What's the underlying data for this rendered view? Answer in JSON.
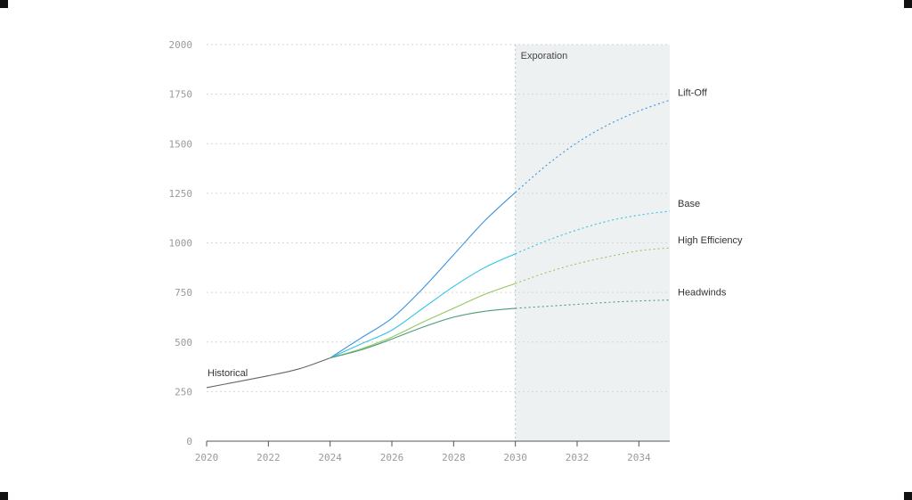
{
  "chart_data": {
    "type": "line",
    "title": "",
    "xlabel": "",
    "ylabel": "",
    "xlim": [
      2020,
      2035
    ],
    "ylim": [
      0,
      2000
    ],
    "x_ticks": [
      2020,
      2022,
      2024,
      2026,
      2028,
      2030,
      2032,
      2034
    ],
    "y_ticks": [
      0,
      250,
      500,
      750,
      1000,
      1250,
      1500,
      1750,
      2000
    ],
    "grid": "horizontal dotted",
    "legend": "none (inline end labels)",
    "region": {
      "label": "Exporation",
      "x_start": 2030,
      "x_end": 2035,
      "color": "#eef1f2"
    },
    "historical": {
      "name": "Historical",
      "color": "#666666",
      "points": [
        [
          2020,
          270
        ],
        [
          2021,
          300
        ],
        [
          2022,
          330
        ],
        [
          2023,
          365
        ],
        [
          2024,
          420
        ]
      ]
    },
    "series": [
      {
        "name": "Lift-Off",
        "color": "#3a93e0",
        "points": [
          [
            2024,
            420
          ],
          [
            2025,
            520
          ],
          [
            2026,
            620
          ],
          [
            2027,
            770
          ],
          [
            2028,
            940
          ],
          [
            2029,
            1110
          ],
          [
            2030,
            1255
          ],
          [
            2031,
            1390
          ],
          [
            2032,
            1505
          ],
          [
            2033,
            1595
          ],
          [
            2034,
            1665
          ],
          [
            2035,
            1720
          ]
        ]
      },
      {
        "name": "Base",
        "color": "#2ec3e8",
        "points": [
          [
            2024,
            420
          ],
          [
            2025,
            490
          ],
          [
            2026,
            560
          ],
          [
            2027,
            670
          ],
          [
            2028,
            780
          ],
          [
            2029,
            875
          ],
          [
            2030,
            945
          ],
          [
            2031,
            1010
          ],
          [
            2032,
            1065
          ],
          [
            2033,
            1110
          ],
          [
            2034,
            1140
          ],
          [
            2035,
            1160
          ]
        ]
      },
      {
        "name": "High Efficiency",
        "color": "#92c85e",
        "points": [
          [
            2024,
            420
          ],
          [
            2025,
            465
          ],
          [
            2026,
            525
          ],
          [
            2027,
            600
          ],
          [
            2028,
            670
          ],
          [
            2029,
            740
          ],
          [
            2030,
            795
          ],
          [
            2031,
            850
          ],
          [
            2032,
            895
          ],
          [
            2033,
            930
          ],
          [
            2034,
            960
          ],
          [
            2035,
            975
          ]
        ]
      },
      {
        "name": "Headwinds",
        "color": "#4e9a7a",
        "points": [
          [
            2024,
            420
          ],
          [
            2025,
            460
          ],
          [
            2026,
            515
          ],
          [
            2027,
            575
          ],
          [
            2028,
            625
          ],
          [
            2029,
            655
          ],
          [
            2030,
            670
          ],
          [
            2031,
            680
          ],
          [
            2032,
            690
          ],
          [
            2033,
            700
          ],
          [
            2034,
            707
          ],
          [
            2035,
            712
          ]
        ]
      }
    ]
  }
}
